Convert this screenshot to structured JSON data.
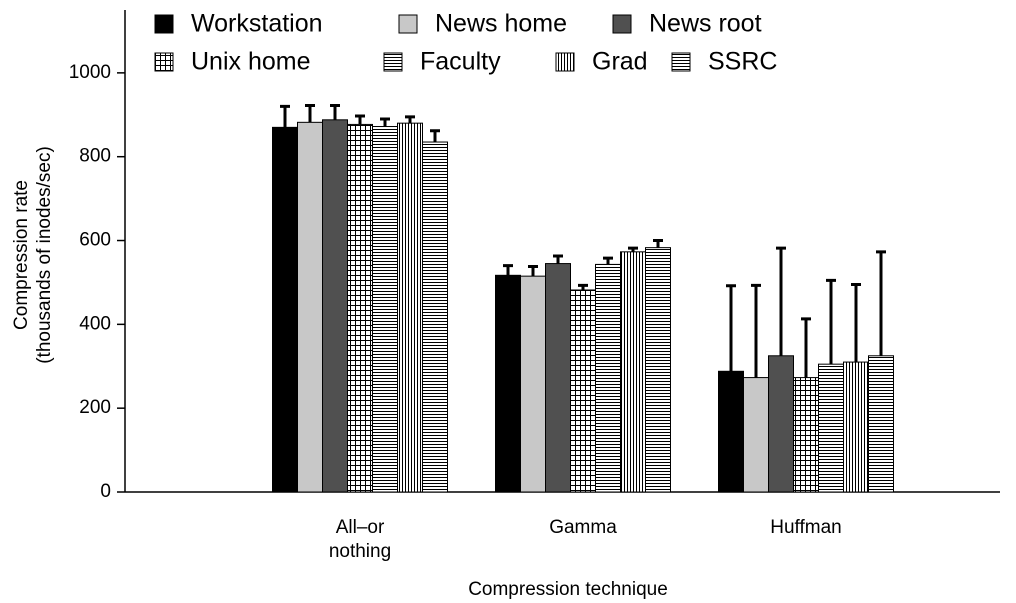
{
  "chart_data": {
    "type": "bar",
    "xlabel": "Compression technique",
    "ylabel": [
      "Compression rate",
      "(thousands of inodes/sec)"
    ],
    "categories": [
      "All–or\nnothing",
      "Gamma",
      "Huffman"
    ],
    "ylim": [
      0,
      1150
    ],
    "yticks": [
      0,
      200,
      400,
      600,
      800,
      1000
    ],
    "series": [
      {
        "name": "Workstation",
        "color": "#000000",
        "pattern": "solid",
        "values": [
          870,
          517,
          288
        ],
        "errors": [
          50,
          23,
          204
        ]
      },
      {
        "name": "News home",
        "color": "#c8c8c8",
        "pattern": "solid",
        "values": [
          882,
          515,
          273
        ],
        "errors": [
          40,
          23,
          220
        ]
      },
      {
        "name": "News root",
        "color": "#505050",
        "pattern": "solid",
        "values": [
          888,
          545,
          325
        ],
        "errors": [
          34,
          18,
          257
        ]
      },
      {
        "name": "Unix home",
        "color": "#000000",
        "pattern": "grid",
        "values": [
          877,
          482,
          273
        ],
        "errors": [
          20,
          11,
          140
        ]
      },
      {
        "name": "Faculty",
        "color": "#000000",
        "pattern": "hlines",
        "values": [
          872,
          543,
          305
        ],
        "errors": [
          18,
          15,
          200
        ]
      },
      {
        "name": "Grad",
        "color": "#000000",
        "pattern": "vlines",
        "values": [
          880,
          573,
          310
        ],
        "errors": [
          15,
          9,
          185
        ]
      },
      {
        "name": "SSRC",
        "color": "#000000",
        "pattern": "hlines",
        "values": [
          835,
          583,
          325
        ],
        "errors": [
          27,
          17,
          248
        ]
      }
    ]
  }
}
